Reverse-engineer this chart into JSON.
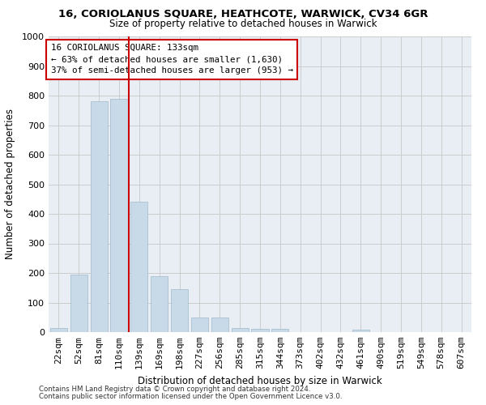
{
  "title": "16, CORIOLANUS SQUARE, HEATHCOTE, WARWICK, CV34 6GR",
  "subtitle": "Size of property relative to detached houses in Warwick",
  "xlabel": "Distribution of detached houses by size in Warwick",
  "ylabel": "Number of detached properties",
  "bar_color": "#c8d9e8",
  "bar_edgecolor": "#a0b8cc",
  "gridcolor": "#cccccc",
  "bg_color": "#e8eef4",
  "annotation_box_color": "#cc0000",
  "vline_color": "#cc0000",
  "footer1": "Contains HM Land Registry data © Crown copyright and database right 2024.",
  "footer2": "Contains public sector information licensed under the Open Government Licence v3.0.",
  "annotation_line1": "16 CORIOLANUS SQUARE: 133sqm",
  "annotation_line2": "← 63% of detached houses are smaller (1,630)",
  "annotation_line3": "37% of semi-detached houses are larger (953) →",
  "categories": [
    "22sqm",
    "52sqm",
    "81sqm",
    "110sqm",
    "139sqm",
    "169sqm",
    "198sqm",
    "227sqm",
    "256sqm",
    "285sqm",
    "315sqm",
    "344sqm",
    "373sqm",
    "402sqm",
    "432sqm",
    "461sqm",
    "490sqm",
    "519sqm",
    "549sqm",
    "578sqm",
    "607sqm"
  ],
  "values": [
    15,
    195,
    780,
    790,
    440,
    190,
    145,
    50,
    50,
    15,
    12,
    10,
    0,
    0,
    0,
    8,
    0,
    0,
    0,
    0,
    0
  ],
  "vline_x": 3.5,
  "ylim": [
    0,
    1000
  ],
  "yticks": [
    0,
    100,
    200,
    300,
    400,
    500,
    600,
    700,
    800,
    900,
    1000
  ]
}
